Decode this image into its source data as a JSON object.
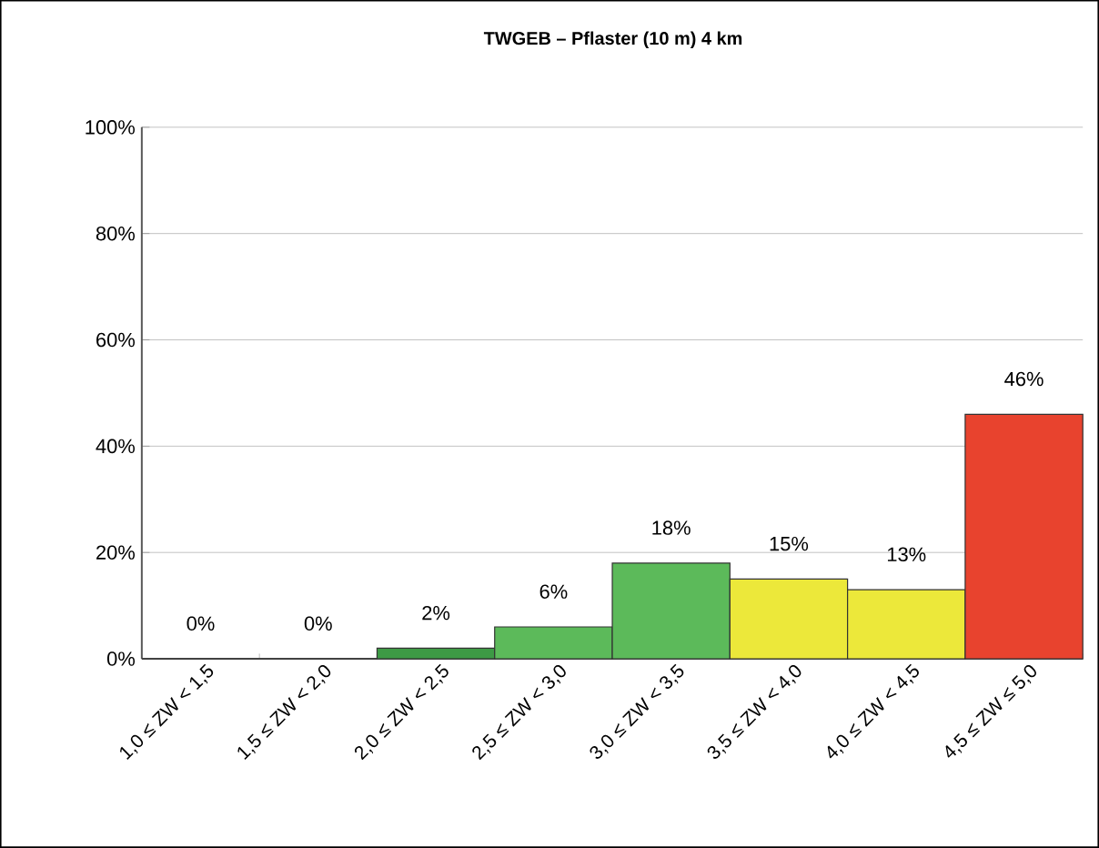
{
  "chart_data": {
    "type": "bar",
    "title": "TWGEB – Pflaster (10 m) 4 km",
    "categories": [
      "1,0 ≤ ZW < 1,5",
      "1,5 ≤ ZW < 2,0",
      "2,0 ≤ ZW < 2,5",
      "2,5 ≤ ZW < 3,0",
      "3,0 ≤ ZW < 3,5",
      "3,5 ≤ ZW < 4,0",
      "4,0 ≤ ZW < 4,5",
      "4,5 ≤ ZW ≤ 5,0"
    ],
    "values": [
      0,
      0,
      2,
      6,
      18,
      15,
      13,
      46
    ],
    "value_labels": [
      "0%",
      "0%",
      "2%",
      "6%",
      "18%",
      "15%",
      "13%",
      "46%"
    ],
    "colors": [
      "#3d9a45",
      "#3d9a45",
      "#3d9a45",
      "#5cba5a",
      "#5cba5a",
      "#ece83a",
      "#ece83a",
      "#e8432e"
    ],
    "ylim": [
      0,
      100
    ],
    "yticks": [
      {
        "value": 0,
        "label": "0%"
      },
      {
        "value": 20,
        "label": "20%"
      },
      {
        "value": 40,
        "label": "40%"
      },
      {
        "value": 60,
        "label": "60%"
      },
      {
        "value": 80,
        "label": "80%"
      },
      {
        "value": 100,
        "label": "100%"
      }
    ],
    "grid": "y"
  }
}
